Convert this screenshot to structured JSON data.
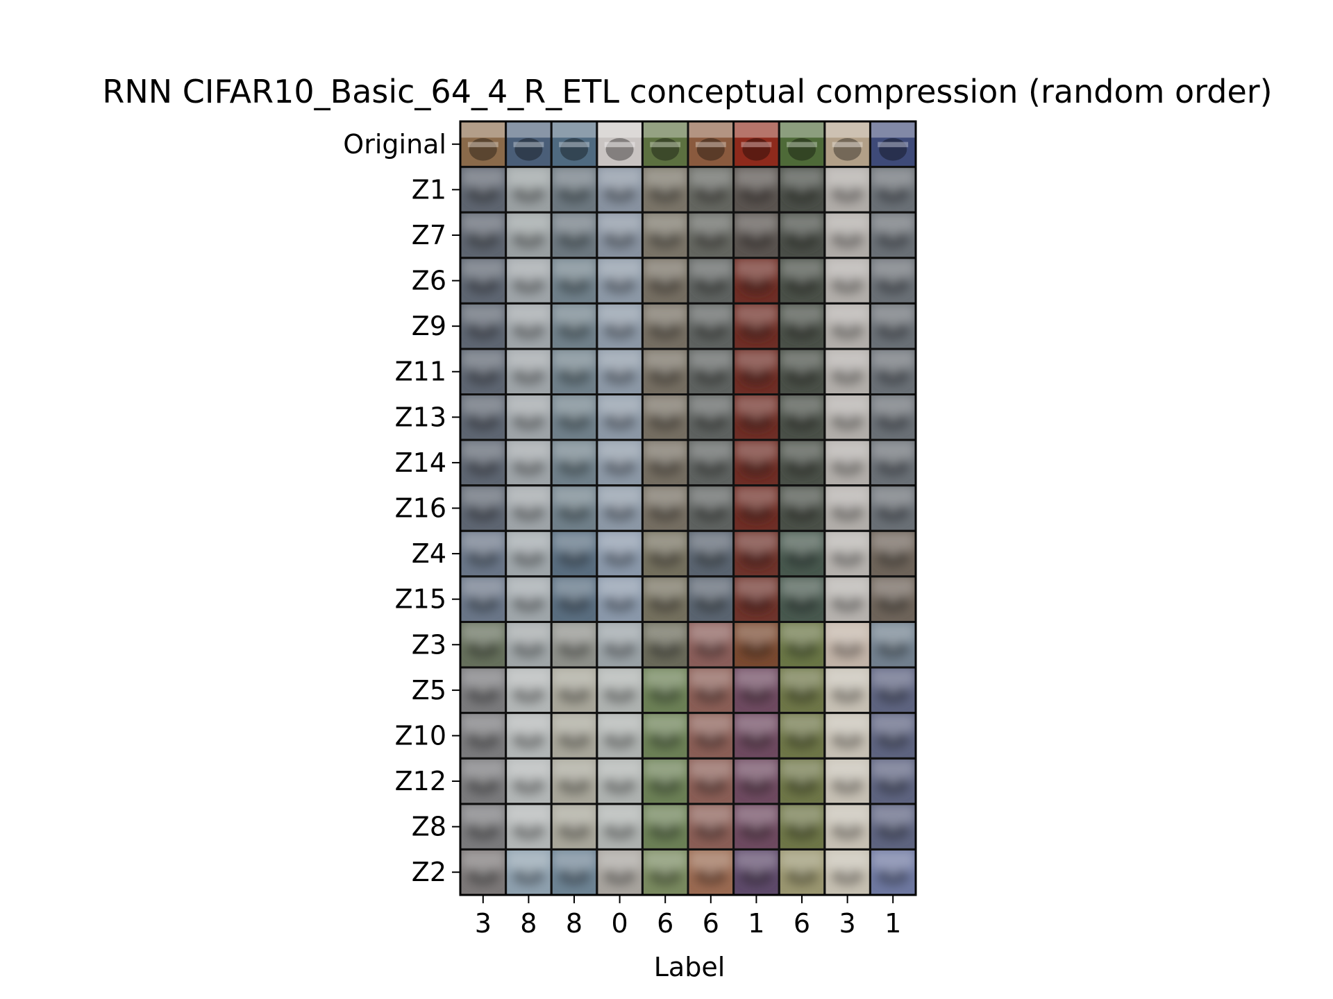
{
  "chart_data": {
    "type": "image-grid",
    "title": "RNN CIFAR10_Basic_64_4_R_ETL conceptual compression (random order)",
    "xlabel": "Label",
    "row_labels": [
      "Original",
      "Z1",
      "Z7",
      "Z6",
      "Z9",
      "Z11",
      "Z13",
      "Z14",
      "Z16",
      "Z4",
      "Z15",
      "Z3",
      "Z5",
      "Z10",
      "Z12",
      "Z8",
      "Z2"
    ],
    "column_labels": [
      "3",
      "8",
      "8",
      "0",
      "6",
      "6",
      "1",
      "6",
      "3",
      "1"
    ],
    "original_tile_colors": [
      "#8a6a4a",
      "#4a5e78",
      "#4f6a80",
      "#c9c4c2",
      "#5c7040",
      "#8a5a3e",
      "#8e2a1c",
      "#4e6a38",
      "#b2a088",
      "#3e4a78"
    ],
    "tile_colors_by_stage": {
      "blur": [
        "#5e6570",
        "#9aa0a2",
        "#6d7880",
        "#8892a0",
        "#7a7468",
        "#646660",
        "#5a5450",
        "#4a4e48",
        "#b0aca8",
        "#6a7076"
      ],
      "z6": [
        "#5e6672",
        "#9ea4a8",
        "#70808a",
        "#8c98a6",
        "#756e62",
        "#5e6260",
        "#6e2e26",
        "#4a5048",
        "#b2aeaa",
        "#6a7076"
      ],
      "z4": [
        "#6a7688",
        "#9fa6aa",
        "#5a6e80",
        "#8a98aa",
        "#74705e",
        "#5a6470",
        "#6e342c",
        "#48584e",
        "#b6b2ae",
        "#6e645a"
      ],
      "z3": [
        "#66705c",
        "#a0a6a8",
        "#8e908a",
        "#9aa2a6",
        "#6a6a5a",
        "#8a5e5a",
        "#7a4a32",
        "#6a7646",
        "#c2b4a8",
        "#72808e"
      ],
      "z5": [
        "#7a7a7c",
        "#b2b6b6",
        "#a8a69a",
        "#aeb2b0",
        "#6c8056",
        "#8a5e56",
        "#6e4a60",
        "#6e7648",
        "#c6c0b4",
        "#5e6480"
      ],
      "z2": [
        "#7c7878",
        "#8ea0ae",
        "#6e8494",
        "#a8a49e",
        "#7a8a60",
        "#9a6a52",
        "#5e4a6a",
        "#9a9670",
        "#c6c0b2",
        "#6e78a0"
      ]
    },
    "row_stage": [
      "original",
      "blur",
      "blur",
      "z6",
      "z6",
      "z6",
      "z6",
      "z6",
      "z6",
      "z4",
      "z4",
      "z3",
      "z5",
      "z5",
      "z5",
      "z5",
      "z2"
    ]
  }
}
